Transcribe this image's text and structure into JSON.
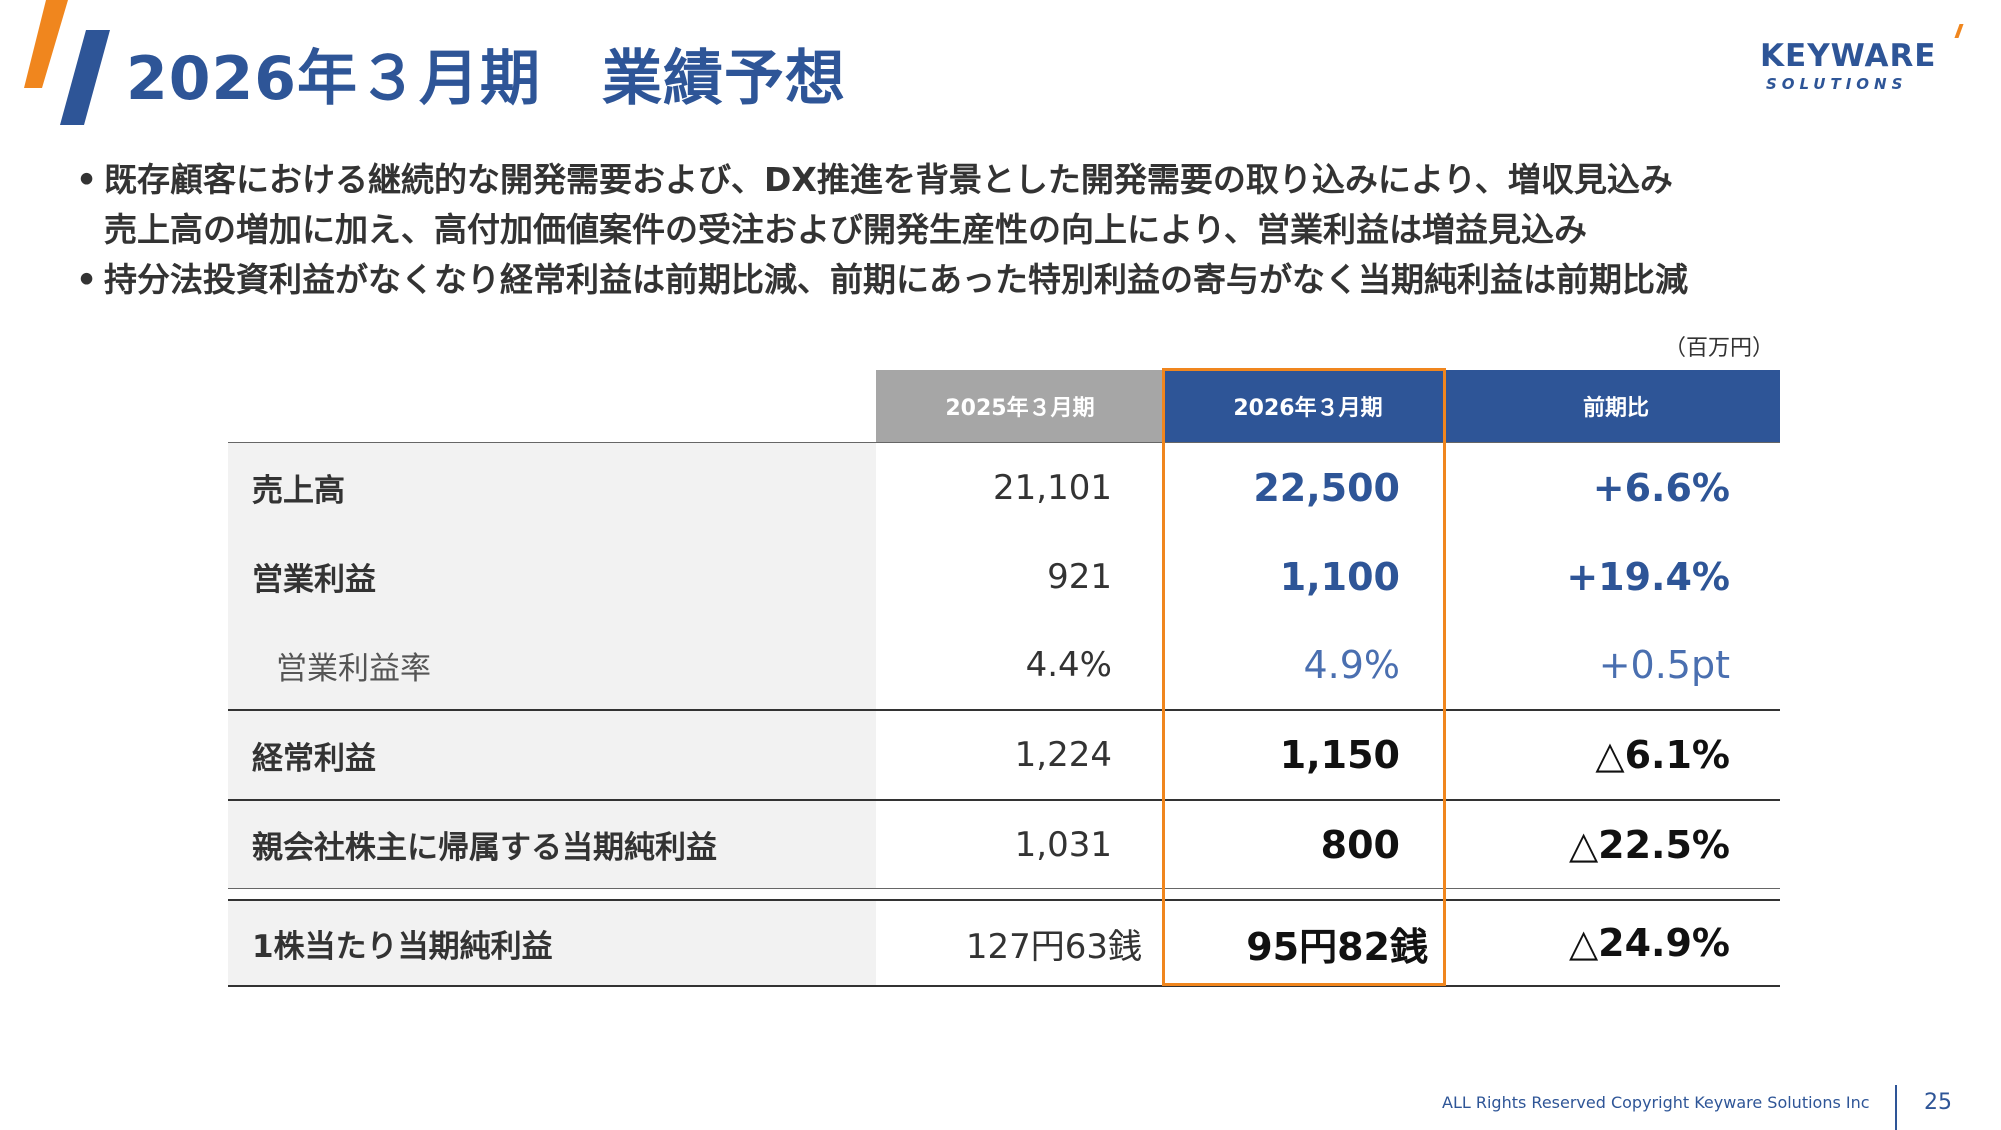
{
  "header": {
    "title": "2026年３月期　業績予想",
    "brand": {
      "name": "KEYWARE",
      "sub": "SOLUTIONS",
      "color": "#2e5597",
      "accent": "#f0861e"
    }
  },
  "bullets": [
    "既存顧客における継続的な開発需要および、DX推進を背景とした開発需要の取り込みにより、増収見込み",
    "売上高の増加に加え、高付加価値案件の受注および開発生産性の向上により、営業利益は増益見込み",
    "持分法投資利益がなくなり経常利益は前期比減、前期にあった特別利益の寄与がなく当期純利益は前期比減"
  ],
  "bullet_marker": "•",
  "unit": "（百万円）",
  "table": {
    "headers": {
      "prev": "2025年３月期",
      "curr": "2026年３月期",
      "change": "前期比"
    },
    "rows": [
      {
        "label": "売上高",
        "prev": "21,101",
        "curr": "22,500",
        "change": "+6.6%"
      },
      {
        "label": "営業利益",
        "prev": "921",
        "curr": "1,100",
        "change": "+19.4%"
      },
      {
        "label": "営業利益率",
        "prev": "4.4%",
        "curr": "4.9%",
        "change": "+0.5pt"
      },
      {
        "label": "経常利益",
        "prev": "1,224",
        "curr": "1,150",
        "change": "△6.1%"
      },
      {
        "label": "親会社株主に帰属する当期純利益",
        "prev": "1,031",
        "curr": "800",
        "change": "△22.5%"
      },
      {
        "label": "1株当たり当期純利益",
        "prev": "127円63銭",
        "curr": "95円82銭",
        "change": "△24.9%"
      }
    ]
  },
  "footer": {
    "copyright": "ALL Rights Reserved Copyright Keyware Solutions Inc",
    "page": "25"
  }
}
